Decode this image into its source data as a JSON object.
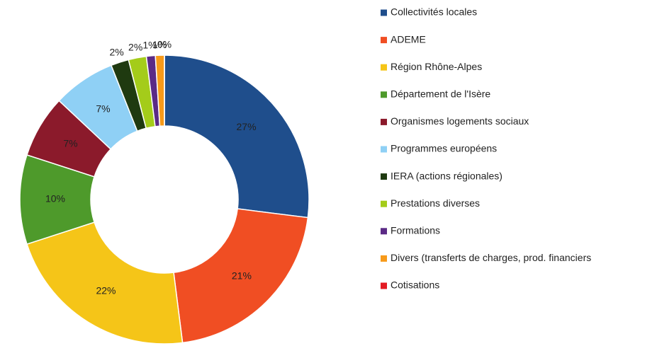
{
  "chart_data": {
    "type": "donut",
    "categories": [
      "Collectivités locales",
      "ADEME",
      "Région Rhône-Alpes",
      "Département de l'Isère",
      "Organismes logements sociaux",
      "Programmes européens",
      "IERA (actions régionales)",
      "Prestations diverses",
      "Formations",
      "Divers (transferts de charges, prod. financiers",
      "Cotisations"
    ],
    "values": [
      27,
      21,
      22,
      10,
      7,
      7,
      2,
      2,
      1,
      1,
      0
    ],
    "value_labels": [
      "27%",
      "21%",
      "22%",
      "10%",
      "7%",
      "7%",
      "2%",
      "2%",
      "1%",
      "1%",
      "0%"
    ],
    "colors": [
      "#1f4e8c",
      "#f04e23",
      "#f5c518",
      "#4e9a2b",
      "#8b1a2b",
      "#8fd0f5",
      "#1f3a10",
      "#a4cc1a",
      "#5b2a86",
      "#f79a1a",
      "#e31b23"
    ],
    "legend": "right"
  }
}
